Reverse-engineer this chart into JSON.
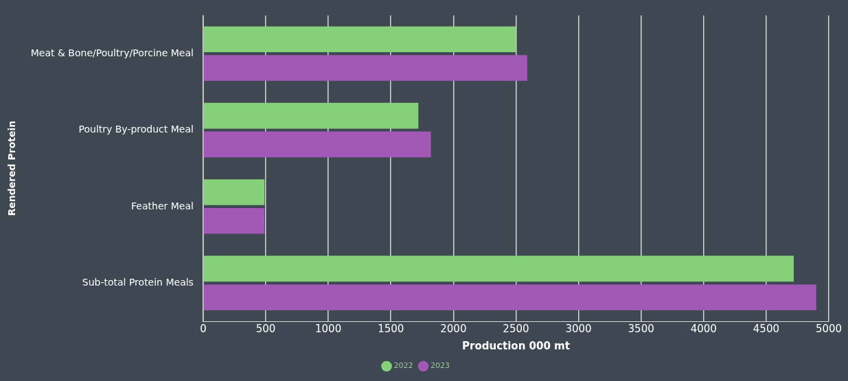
{
  "chart_data": {
    "type": "bar",
    "orientation": "horizontal",
    "xlabel": "Production 000 mt",
    "ylabel": "Rendered Protein",
    "categories": [
      "Meat & Bone/Poultry/Porcine Meal",
      "Poultry By-product Meal",
      "Feather Meal",
      "Sub-total Protein Meals"
    ],
    "series": [
      {
        "name": "2022",
        "color": "#86d07a",
        "values": [
          2500,
          1720,
          490,
          4720
        ]
      },
      {
        "name": "2023",
        "color": "#a259b5",
        "values": [
          2590,
          1820,
          490,
          4900
        ]
      }
    ],
    "xlim": [
      0,
      5000
    ],
    "xticks": [
      0,
      500,
      1000,
      1500,
      2000,
      2500,
      3000,
      3500,
      4000,
      4500,
      5000
    ],
    "grid": "x",
    "legend": "bottom"
  }
}
